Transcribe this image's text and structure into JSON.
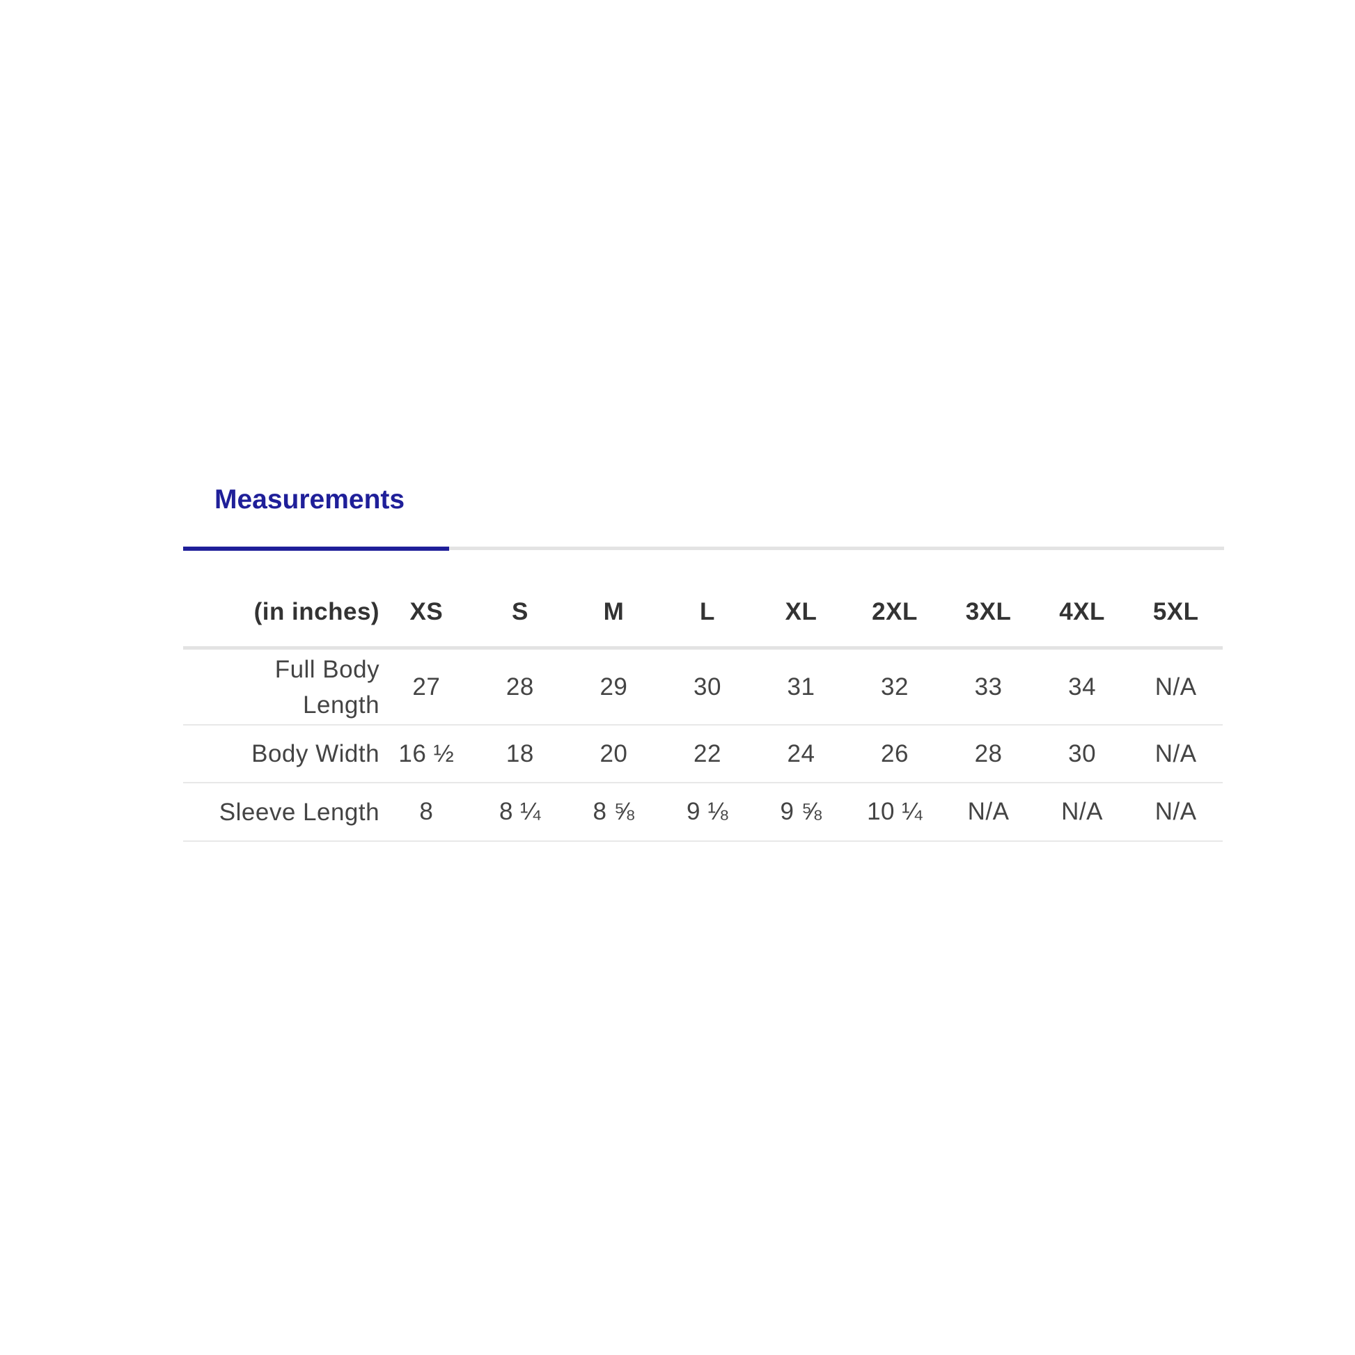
{
  "tab": {
    "title": "Measurements",
    "accent_color": "#1f1f99"
  },
  "table": {
    "unit_label": "(in inches)",
    "sizes": [
      "XS",
      "S",
      "M",
      "L",
      "XL",
      "2XL",
      "3XL",
      "4XL",
      "5XL"
    ],
    "rows": [
      {
        "label": "Full Body Length",
        "values": [
          "27",
          "28",
          "29",
          "30",
          "31",
          "32",
          "33",
          "34",
          "N/A"
        ]
      },
      {
        "label": "Body Width",
        "values": [
          "16 ½",
          "18",
          "20",
          "22",
          "24",
          "26",
          "28",
          "30",
          "N/A"
        ]
      },
      {
        "label": "Sleeve Length",
        "values": [
          "8",
          "8 ¼",
          "8 ⅝",
          "9 ⅛",
          "9 ⅝",
          "10 ¼",
          "N/A",
          "N/A",
          "N/A"
        ]
      }
    ]
  }
}
